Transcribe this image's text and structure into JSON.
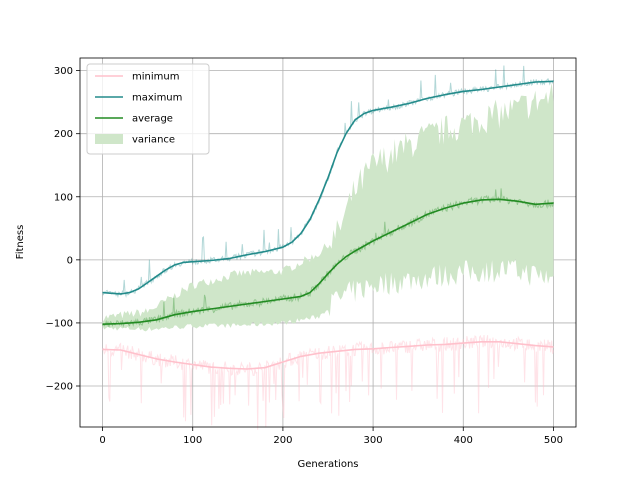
{
  "chart_data": {
    "type": "line",
    "title": "",
    "xlabel": "Generations",
    "ylabel": "Fitness",
    "xlim": [
      -25,
      525
    ],
    "ylim": [
      -265,
      320
    ],
    "xticks": [
      0,
      100,
      200,
      300,
      400,
      500
    ],
    "yticks": [
      -200,
      -100,
      0,
      100,
      200,
      300
    ],
    "grid": true,
    "legend": {
      "placement": "top-left",
      "entries": [
        {
          "label": "minimum",
          "color": "#ffc0cb",
          "kind": "line"
        },
        {
          "label": "maximum",
          "color": "#238b8b",
          "kind": "line"
        },
        {
          "label": "average",
          "color": "#228b22",
          "kind": "line"
        },
        {
          "label": "variance",
          "color": "#cfe6c9",
          "kind": "patch"
        }
      ]
    },
    "series": [
      {
        "name": "minimum",
        "color": "#ffc0cb",
        "smoothed": {
          "x": [
            0,
            20,
            40,
            60,
            80,
            100,
            120,
            140,
            160,
            180,
            200,
            220,
            240,
            260,
            280,
            300,
            320,
            340,
            360,
            380,
            400,
            420,
            440,
            460,
            480,
            500
          ],
          "y": [
            -142,
            -143,
            -150,
            -157,
            -162,
            -166,
            -170,
            -172,
            -173,
            -171,
            -162,
            -153,
            -148,
            -145,
            -142,
            -141,
            -139,
            -137,
            -135,
            -134,
            -132,
            -130,
            -130,
            -133,
            -136,
            -138
          ]
        }
      },
      {
        "name": "maximum",
        "color": "#238b8b",
        "smoothed": {
          "x": [
            0,
            10,
            20,
            30,
            40,
            50,
            60,
            70,
            80,
            90,
            100,
            120,
            140,
            160,
            180,
            200,
            210,
            220,
            230,
            240,
            250,
            260,
            270,
            280,
            290,
            300,
            320,
            340,
            360,
            380,
            400,
            420,
            440,
            460,
            480,
            500
          ],
          "y": [
            -52,
            -53,
            -54,
            -52,
            -46,
            -36,
            -26,
            -16,
            -8,
            -4,
            -3,
            -1,
            2,
            8,
            13,
            20,
            28,
            42,
            64,
            95,
            130,
            170,
            200,
            222,
            232,
            237,
            242,
            248,
            256,
            262,
            267,
            270,
            274,
            278,
            282,
            283
          ]
        }
      },
      {
        "name": "average",
        "color": "#228b22",
        "smoothed": {
          "x": [
            0,
            20,
            40,
            60,
            80,
            100,
            120,
            140,
            160,
            180,
            200,
            220,
            230,
            240,
            250,
            260,
            270,
            280,
            300,
            320,
            340,
            360,
            380,
            400,
            420,
            440,
            460,
            480,
            500
          ],
          "y": [
            -102,
            -101,
            -99,
            -95,
            -87,
            -82,
            -78,
            -74,
            -70,
            -66,
            -62,
            -58,
            -52,
            -38,
            -22,
            -7,
            5,
            14,
            30,
            44,
            58,
            72,
            82,
            90,
            95,
            96,
            93,
            88,
            90
          ]
        }
      },
      {
        "name": "variance",
        "color": "#cfe6c9",
        "band": {
          "x": [
            0,
            50,
            100,
            150,
            200,
            240,
            260,
            280,
            300,
            350,
            400,
            450,
            500
          ],
          "upper": [
            -92,
            -82,
            -40,
            -22,
            -18,
            10,
            40,
            110,
            150,
            190,
            215,
            235,
            260
          ],
          "lower": [
            -108,
            -110,
            -105,
            -104,
            -100,
            -90,
            -62,
            -50,
            -40,
            -30,
            -20,
            -15,
            -30
          ]
        }
      }
    ]
  }
}
